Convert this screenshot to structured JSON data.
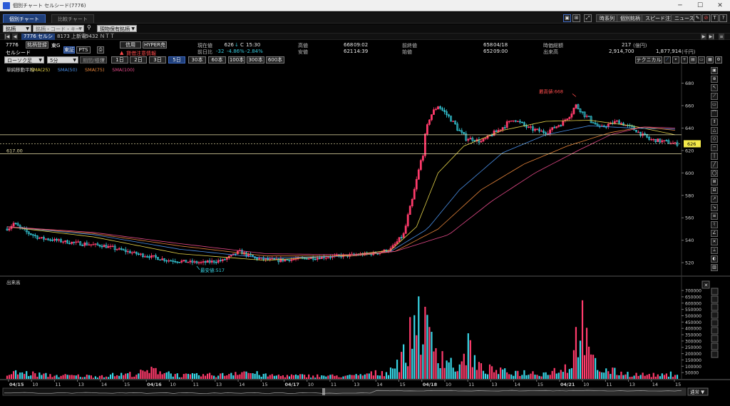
{
  "window": {
    "title": "個別チャート セルシード(7776)",
    "minimize": "─",
    "maximize": "☐",
    "close": "✕"
  },
  "tabs": [
    {
      "label": "個別チャート",
      "active": true
    },
    {
      "label": "比較チャート",
      "active": false
    }
  ],
  "toolbar_right": {
    "time_series": "時系列",
    "individual": "個別銘柄",
    "speed_order": "スピード注文",
    "news": "ニュース",
    "icons": [
      "layout-icon",
      "grid-icon",
      "expand-icon",
      "tool-icon",
      "no-entry-icon",
      "text-icon",
      "help-icon"
    ]
  },
  "search": {
    "category": "銘柄",
    "placeholder": "銘柄・コード・キーワード",
    "holdings": "現物保有銘柄"
  },
  "stock_tabs": {
    "current": "7776 セルシ",
    "others": [
      "8173 上新電",
      "9432 ＮＴＴ"
    ]
  },
  "stock": {
    "code": "7776",
    "name": "セルシード",
    "market": "東G",
    "register_button": "銘柄登録",
    "exchange_tse": "東証",
    "exchange_pts": "PTS",
    "credit_button": "信用",
    "hyper_sell_button": "HYPER売",
    "warning": "貸借注意情報",
    "chart_type": "ローソク足",
    "interval": "5分",
    "period_label": "期間/種類"
  },
  "quote": {
    "current_label": "現在値",
    "current_value": "626",
    "current_arrow": "↓",
    "current_flag": "C",
    "current_time": "15:30",
    "change_label": "前日比",
    "change_value": "-32",
    "change_pct": "-4.86%",
    "change_pct2": "-2.84%",
    "high_label": "高値",
    "high_value": "668",
    "high_time": "09:02",
    "low_label": "安値",
    "low_value": "621",
    "low_time": "14:39",
    "prev_close_label": "前終値",
    "prev_close_value": "658",
    "prev_close_date": "04/18",
    "open_label": "始値",
    "open_value": "652",
    "open_time": "09:00",
    "mcap_label": "時価総額",
    "mcap_value": "217",
    "mcap_unit": "(億円)",
    "volume_label": "出来高",
    "volume_value": "2,914,700",
    "volume2": "1,877,914",
    "volume2_unit": "(千円)"
  },
  "periods": [
    {
      "label": "1日",
      "active": false
    },
    {
      "label": "2日",
      "active": false
    },
    {
      "label": "3日",
      "active": false
    },
    {
      "label": "5日",
      "active": true
    },
    {
      "label": "30本",
      "active": false
    },
    {
      "label": "60本",
      "active": false
    },
    {
      "label": "100本",
      "active": false
    },
    {
      "label": "300本",
      "active": false
    },
    {
      "label": "600本",
      "active": false
    }
  ],
  "technical_button": "テクニカル",
  "scale_mode": "通常",
  "chart_data": {
    "type": "candlestick",
    "price_legend": [
      {
        "label": "単純移動平均",
        "color": "#cfcfcf"
      },
      {
        "label": "SMA(25)",
        "color": "#e6d44a"
      },
      {
        "label": "SMA(50)",
        "color": "#4a8fe6"
      },
      {
        "label": "SMA(75)",
        "color": "#e8853a"
      },
      {
        "label": "SMA(100)",
        "color": "#e64a8a"
      }
    ],
    "volume_title": "出来高",
    "price_axis": {
      "ticks": [
        680,
        660,
        640,
        620,
        600,
        580,
        560,
        540,
        520
      ],
      "range": [
        508,
        688
      ]
    },
    "volume_axis": {
      "ticks": [
        700000,
        650000,
        600000,
        550000,
        500000,
        450000,
        400000,
        350000,
        300000,
        250000,
        200000,
        150000,
        100000,
        50000
      ],
      "range": [
        0,
        740000
      ]
    },
    "x_ticks": [
      "04/15",
      "10",
      "11",
      "13",
      "14",
      "15",
      "04/16",
      "10",
      "11",
      "13",
      "14",
      "15",
      "04/17",
      "10",
      "11",
      "13",
      "14",
      "15",
      "04/18",
      "10",
      "11",
      "13",
      "14",
      "15",
      "04/21",
      "10",
      "11",
      "13",
      "14",
      "15"
    ],
    "x_tick_bold": [
      true,
      false,
      false,
      false,
      false,
      false,
      true,
      false,
      false,
      false,
      false,
      false,
      true,
      false,
      false,
      false,
      false,
      false,
      true,
      false,
      false,
      false,
      false,
      false,
      true,
      false,
      false,
      false,
      false,
      false
    ],
    "current_price_label": "626",
    "current_price": 626,
    "ref_lines": [
      {
        "value": 617,
        "label": "617.00"
      },
      {
        "value": 634
      }
    ],
    "max_annotation": {
      "label": "最高値:668",
      "value": 668
    },
    "min_annotation": {
      "label": "最安値:517",
      "value": 517
    },
    "price_keypoints": [
      [
        0,
        550
      ],
      [
        3,
        555
      ],
      [
        8,
        548
      ],
      [
        15,
        542
      ],
      [
        30,
        538
      ],
      [
        45,
        535
      ],
      [
        60,
        528
      ],
      [
        75,
        522
      ],
      [
        90,
        520
      ],
      [
        100,
        522
      ],
      [
        108,
        530
      ],
      [
        115,
        524
      ],
      [
        125,
        522
      ],
      [
        140,
        524
      ],
      [
        155,
        526
      ],
      [
        170,
        528
      ],
      [
        178,
        532
      ],
      [
        184,
        545
      ],
      [
        188,
        575
      ],
      [
        192,
        610
      ],
      [
        196,
        650
      ],
      [
        200,
        660
      ],
      [
        206,
        648
      ],
      [
        212,
        632
      ],
      [
        220,
        628
      ],
      [
        228,
        638
      ],
      [
        235,
        648
      ],
      [
        242,
        640
      ],
      [
        250,
        636
      ],
      [
        258,
        645
      ],
      [
        264,
        660
      ],
      [
        268,
        652
      ],
      [
        275,
        640
      ],
      [
        283,
        646
      ],
      [
        290,
        640
      ],
      [
        298,
        630
      ],
      [
        305,
        628
      ],
      [
        310,
        626
      ]
    ],
    "sma_series": [
      {
        "name": "SMA(25)",
        "color": "#e6d44a",
        "points": [
          [
            0,
            552
          ],
          [
            40,
            543
          ],
          [
            80,
            528
          ],
          [
            120,
            522
          ],
          [
            160,
            527
          ],
          [
            178,
            531
          ],
          [
            190,
            552
          ],
          [
            200,
            600
          ],
          [
            212,
            624
          ],
          [
            230,
            638
          ],
          [
            250,
            646
          ],
          [
            270,
            647
          ],
          [
            290,
            642
          ],
          [
            310,
            634
          ]
        ]
      },
      {
        "name": "SMA(50)",
        "color": "#4a8fe6",
        "points": [
          [
            0,
            552
          ],
          [
            40,
            545
          ],
          [
            80,
            532
          ],
          [
            120,
            524
          ],
          [
            160,
            526
          ],
          [
            178,
            530
          ],
          [
            195,
            550
          ],
          [
            210,
            585
          ],
          [
            230,
            618
          ],
          [
            250,
            634
          ],
          [
            270,
            642
          ],
          [
            290,
            640
          ],
          [
            310,
            639
          ]
        ]
      },
      {
        "name": "SMA(75)",
        "color": "#e8853a",
        "points": [
          [
            0,
            552
          ],
          [
            40,
            546
          ],
          [
            80,
            535
          ],
          [
            120,
            526
          ],
          [
            160,
            526
          ],
          [
            180,
            530
          ],
          [
            200,
            550
          ],
          [
            220,
            585
          ],
          [
            240,
            608
          ],
          [
            260,
            624
          ],
          [
            280,
            636
          ],
          [
            295,
            641
          ],
          [
            310,
            638
          ]
        ]
      },
      {
        "name": "SMA(100)",
        "color": "#e64a8a",
        "points": [
          [
            0,
            552
          ],
          [
            40,
            547
          ],
          [
            80,
            537
          ],
          [
            120,
            528
          ],
          [
            160,
            527
          ],
          [
            180,
            530
          ],
          [
            205,
            545
          ],
          [
            225,
            575
          ],
          [
            245,
            600
          ],
          [
            265,
            620
          ],
          [
            280,
            634
          ],
          [
            295,
            641
          ],
          [
            310,
            640
          ]
        ]
      }
    ],
    "volume_keypoints": [
      [
        0,
        40000
      ],
      [
        5,
        55000
      ],
      [
        20,
        30000
      ],
      [
        40,
        25000
      ],
      [
        60,
        45000
      ],
      [
        70,
        80000
      ],
      [
        80,
        30000
      ],
      [
        100,
        35000
      ],
      [
        108,
        70000
      ],
      [
        120,
        30000
      ],
      [
        160,
        25000
      ],
      [
        176,
        60000
      ],
      [
        182,
        150000
      ],
      [
        186,
        250000
      ],
      [
        190,
        600000
      ],
      [
        193,
        450000
      ],
      [
        196,
        350000
      ],
      [
        200,
        250000
      ],
      [
        205,
        150000
      ],
      [
        210,
        80000
      ],
      [
        214,
        300000
      ],
      [
        218,
        100000
      ],
      [
        230,
        60000
      ],
      [
        250,
        50000
      ],
      [
        262,
        120000
      ],
      [
        266,
        550000
      ],
      [
        270,
        200000
      ],
      [
        275,
        80000
      ],
      [
        290,
        40000
      ],
      [
        305,
        30000
      ],
      [
        310,
        50000
      ]
    ]
  }
}
